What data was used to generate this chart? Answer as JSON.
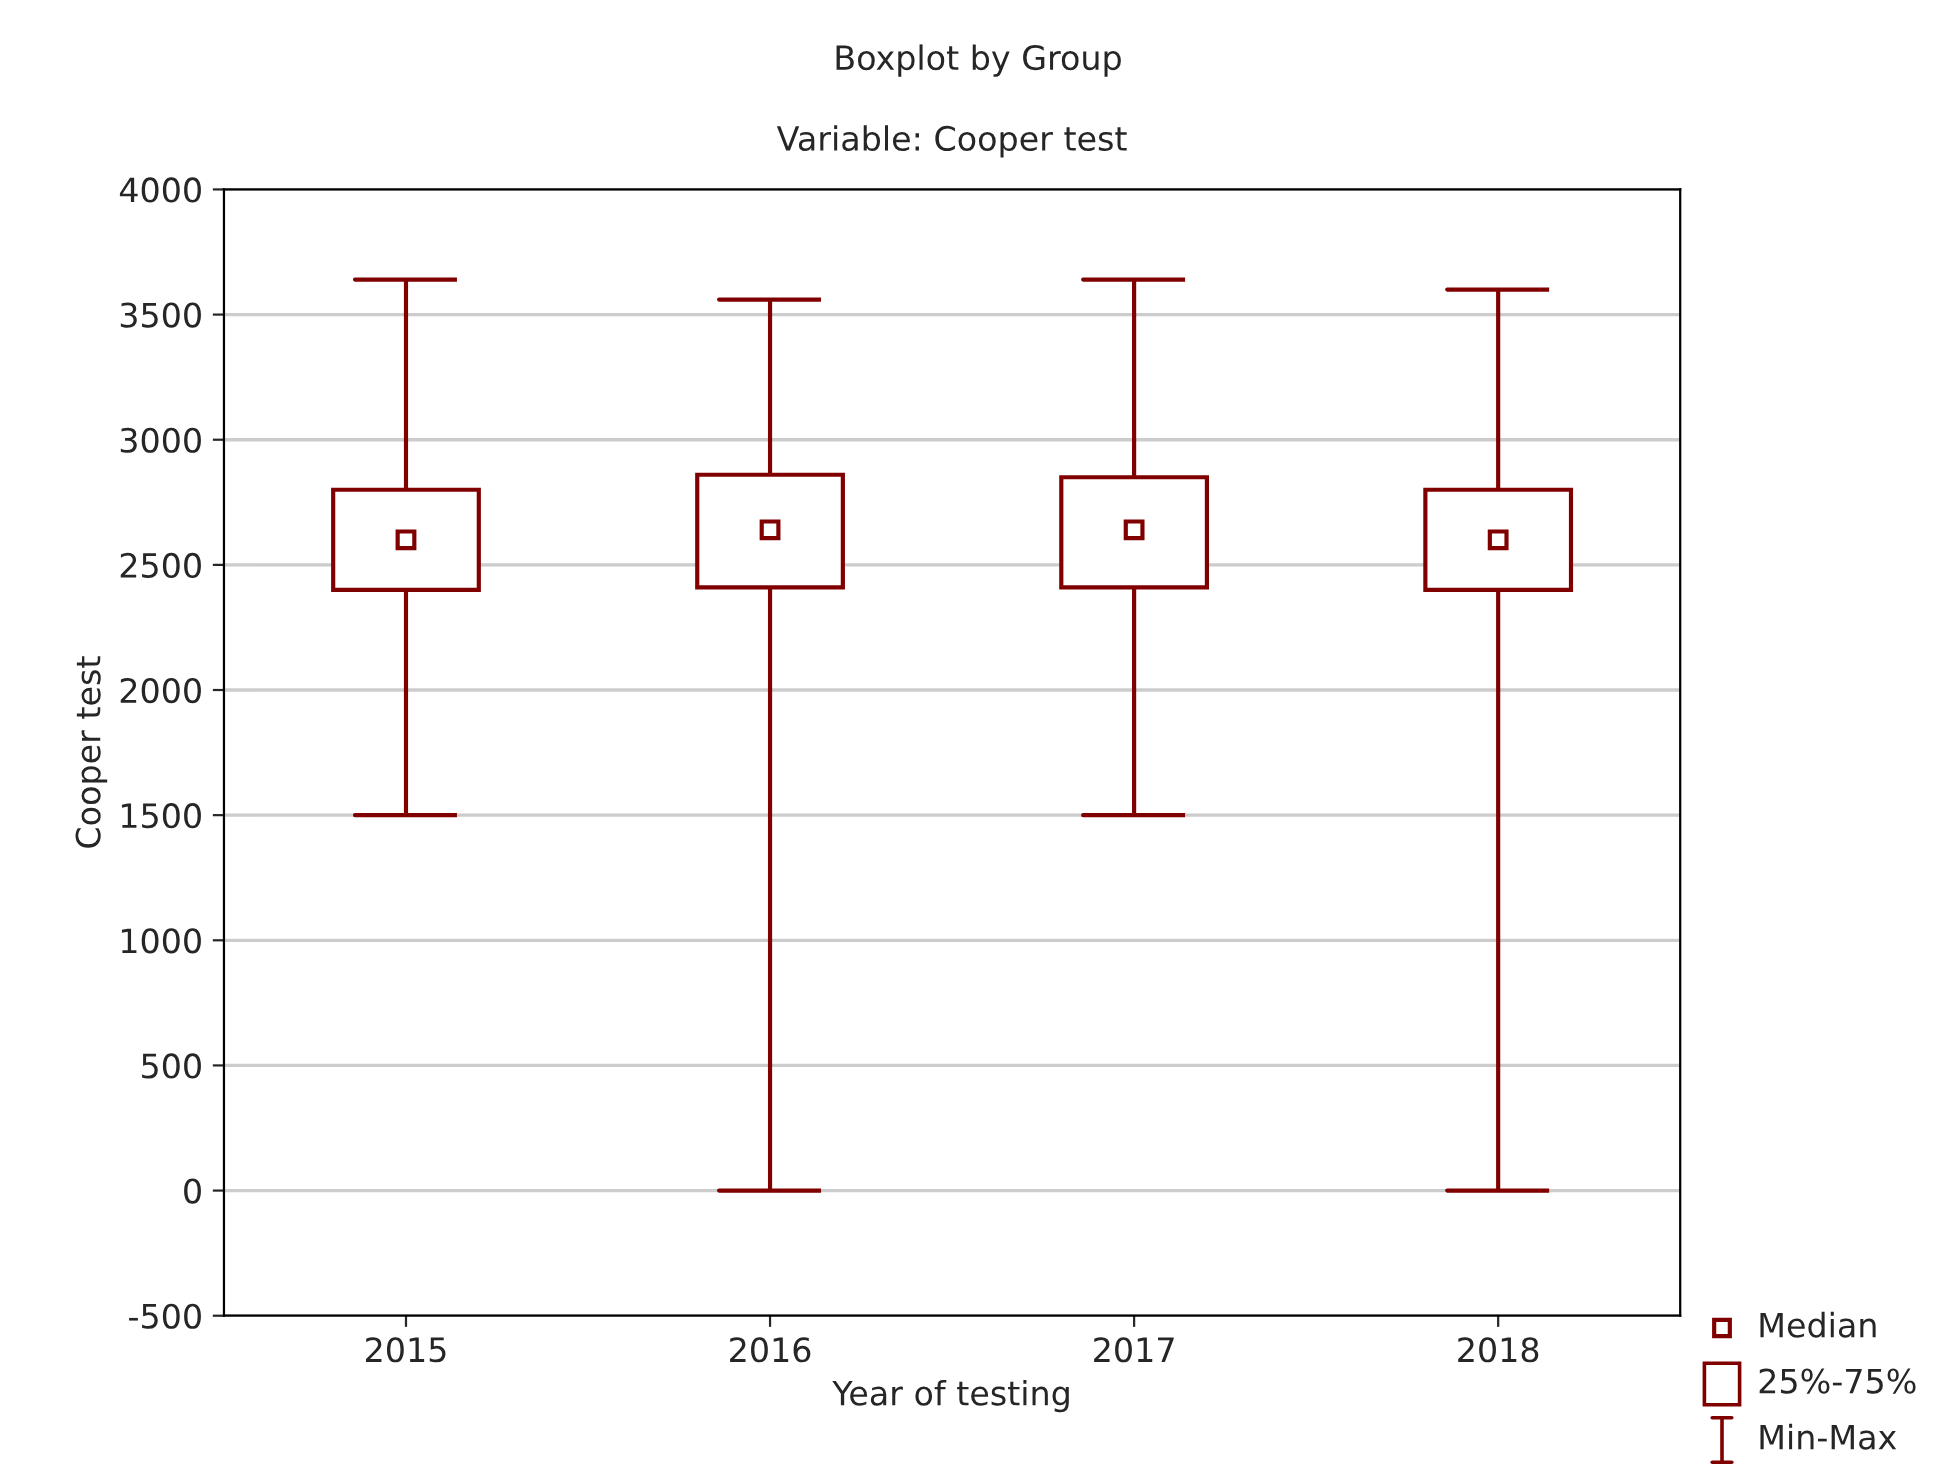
{
  "chart_data": {
    "type": "box",
    "title": "Boxplot by Group",
    "subtitle": "Variable: Cooper test",
    "xlabel": "Year of testing",
    "ylabel": "Cooper test",
    "categories": [
      "2015",
      "2016",
      "2017",
      "2018"
    ],
    "series": [
      {
        "color": "#800000",
        "boxes": [
          {
            "low": 1500,
            "q1": 2400,
            "median": 2600,
            "q3": 2800,
            "high": 3640
          },
          {
            "low": 0,
            "q1": 2410,
            "median": 2640,
            "q3": 2860,
            "high": 3560
          },
          {
            "low": 1500,
            "q1": 2410,
            "median": 2640,
            "q3": 2850,
            "high": 3640
          },
          {
            "low": 0,
            "q1": 2400,
            "median": 2600,
            "q3": 2800,
            "high": 3600
          }
        ]
      }
    ],
    "ylim": [
      -500,
      4000
    ],
    "yticks": [
      -500,
      0,
      500,
      1000,
      1500,
      2000,
      2500,
      3000,
      3500,
      4000
    ],
    "grid": "y",
    "marker": "square",
    "annotations": [
      "Median",
      "25%-75%",
      "Min-Max"
    ]
  }
}
